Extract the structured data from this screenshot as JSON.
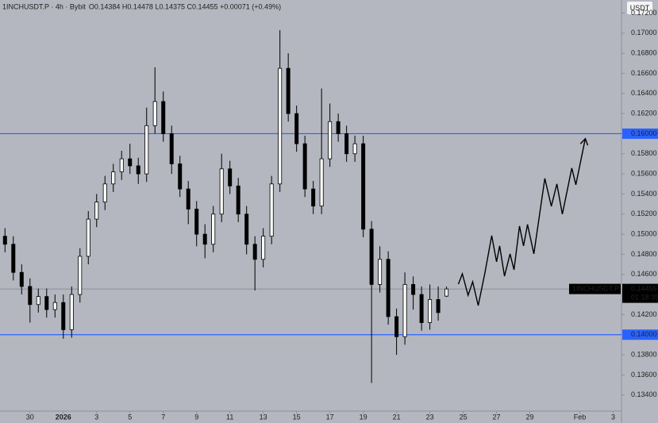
{
  "chart_data": {
    "type": "candlestick",
    "title": "1INCHUSDT.P · 4h · Bybit",
    "ohlc_label": "O0.14384 H0.14478 L0.14375 C0.14455 +0.00071 (+0.49%)",
    "currency_button": "USDT",
    "x": [
      -0.5,
      0,
      0.5,
      1,
      1.5,
      2,
      2.5,
      3,
      3.5,
      4,
      4.5,
      5,
      5.5,
      6,
      6.5,
      7,
      7.5,
      8,
      8.5,
      9,
      9.5,
      10,
      10.5,
      11,
      11.5,
      12,
      12.5,
      13,
      13.5,
      14,
      14.5,
      15,
      15.5,
      16,
      16.5,
      17,
      17.5,
      18,
      18.5,
      19,
      19.5,
      20,
      20.5,
      21,
      21.5,
      22,
      22.5,
      23,
      23.5,
      24,
      24.5,
      25,
      25.5,
      26
    ],
    "open": [
      0.1498,
      0.149,
      0.1462,
      0.1448,
      0.143,
      0.1438,
      0.1425,
      0.1432,
      0.1405,
      0.144,
      0.1478,
      0.1515,
      0.1532,
      0.155,
      0.1562,
      0.1575,
      0.1568,
      0.156,
      0.1608,
      0.1632,
      0.16,
      0.157,
      0.1545,
      0.1525,
      0.15,
      0.149,
      0.152,
      0.1565,
      0.1548,
      0.152,
      0.149,
      0.1475,
      0.1498,
      0.155,
      0.1665,
      0.162,
      0.159,
      0.1545,
      0.1528,
      0.1575,
      0.1612,
      0.16,
      0.158,
      0.159,
      0.1505,
      0.145,
      0.1475,
      0.1418,
      0.1398,
      0.145,
      0.144,
      0.1412,
      0.1435,
      0.14384
    ],
    "high": [
      0.1506,
      0.1498,
      0.147,
      0.1456,
      0.1446,
      0.1446,
      0.144,
      0.144,
      0.1448,
      0.1486,
      0.1523,
      0.154,
      0.1558,
      0.157,
      0.1583,
      0.159,
      0.1576,
      0.1626,
      0.1666,
      0.1642,
      0.1608,
      0.1578,
      0.1553,
      0.1533,
      0.151,
      0.1528,
      0.158,
      0.1573,
      0.1556,
      0.1528,
      0.1498,
      0.1506,
      0.1558,
      0.1703,
      0.168,
      0.1628,
      0.1598,
      0.1553,
      0.1645,
      0.163,
      0.162,
      0.1608,
      0.1598,
      0.1598,
      0.1513,
      0.1488,
      0.1483,
      0.1426,
      0.1462,
      0.1458,
      0.1448,
      0.145,
      0.1448,
      0.14478
    ],
    "low": [
      0.1482,
      0.1454,
      0.144,
      0.1412,
      0.1422,
      0.1417,
      0.1417,
      0.1396,
      0.1397,
      0.1432,
      0.147,
      0.1507,
      0.1524,
      0.1542,
      0.1554,
      0.156,
      0.155,
      0.1552,
      0.16,
      0.1592,
      0.156,
      0.1537,
      0.151,
      0.1488,
      0.1476,
      0.1482,
      0.1512,
      0.154,
      0.1512,
      0.148,
      0.1444,
      0.1467,
      0.149,
      0.1542,
      0.1612,
      0.1582,
      0.1537,
      0.152,
      0.152,
      0.1567,
      0.1592,
      0.1572,
      0.1572,
      0.1497,
      0.1352,
      0.1442,
      0.141,
      0.138,
      0.139,
      0.1425,
      0.1404,
      0.1405,
      0.1414,
      0.14375
    ],
    "close": [
      0.149,
      0.1462,
      0.1448,
      0.143,
      0.1438,
      0.1425,
      0.1432,
      0.1405,
      0.144,
      0.1478,
      0.1515,
      0.1532,
      0.155,
      0.1562,
      0.1575,
      0.1568,
      0.156,
      0.1608,
      0.1632,
      0.16,
      0.157,
      0.1545,
      0.1525,
      0.15,
      0.149,
      0.152,
      0.1565,
      0.1548,
      0.152,
      0.149,
      0.1475,
      0.1498,
      0.155,
      0.1665,
      0.162,
      0.159,
      0.1545,
      0.1528,
      0.1575,
      0.1612,
      0.16,
      0.158,
      0.159,
      0.1505,
      0.145,
      0.1475,
      0.1418,
      0.1398,
      0.145,
      0.144,
      0.1412,
      0.1435,
      0.1422,
      0.14455
    ],
    "up_color": "#ffffff",
    "down_color": "#000000",
    "xlim": [
      -0.8,
      36.5
    ],
    "xticks": [
      {
        "value": 1,
        "label": "30"
      },
      {
        "value": 3,
        "label": "2026"
      },
      {
        "value": 5,
        "label": "3"
      },
      {
        "value": 7,
        "label": "5"
      },
      {
        "value": 9,
        "label": "7"
      },
      {
        "value": 11,
        "label": "9"
      },
      {
        "value": 13,
        "label": "11"
      },
      {
        "value": 15,
        "label": "13"
      },
      {
        "value": 17,
        "label": "15"
      },
      {
        "value": 19,
        "label": "17"
      },
      {
        "value": 21,
        "label": "19"
      },
      {
        "value": 23,
        "label": "21"
      },
      {
        "value": 25,
        "label": "23"
      },
      {
        "value": 27,
        "label": "25"
      },
      {
        "value": 29,
        "label": "27"
      },
      {
        "value": 31,
        "label": "29"
      },
      {
        "value": 34,
        "label": "Feb"
      },
      {
        "value": 36,
        "label": "3"
      }
    ],
    "ylim": [
      0.1324,
      0.1733
    ],
    "yticks": [
      {
        "value": 0.134,
        "label": "0.13400"
      },
      {
        "value": 0.136,
        "label": "0.13600"
      },
      {
        "value": 0.138,
        "label": "0.13800"
      },
      {
        "value": 0.14,
        "label": "0.14000"
      },
      {
        "value": 0.142,
        "label": "0.14200"
      },
      {
        "value": 0.144,
        "label": "0.14400"
      },
      {
        "value": 0.146,
        "label": "0.14600"
      },
      {
        "value": 0.148,
        "label": "0.14800"
      },
      {
        "value": 0.15,
        "label": "0.15000"
      },
      {
        "value": 0.152,
        "label": "0.15200"
      },
      {
        "value": 0.154,
        "label": "0.15400"
      },
      {
        "value": 0.156,
        "label": "0.15600"
      },
      {
        "value": 0.158,
        "label": "0.15800"
      },
      {
        "value": 0.16,
        "label": "0.16000"
      },
      {
        "value": 0.162,
        "label": "0.16200"
      },
      {
        "value": 0.164,
        "label": "0.16400"
      },
      {
        "value": 0.166,
        "label": "0.16600"
      },
      {
        "value": 0.168,
        "label": "0.16800"
      },
      {
        "value": 0.17,
        "label": "0.17000"
      },
      {
        "value": 0.172,
        "label": "0.17200"
      }
    ],
    "levels": [
      {
        "value": 0.16,
        "label": "0.16000",
        "color": "#2962ff"
      },
      {
        "value": 0.14,
        "label": "0.14000",
        "color": "#2962ff"
      }
    ],
    "last_price": {
      "symbol": "1INCHUSDT.P",
      "value": 0.14455,
      "countdown": "01:18:35"
    },
    "projection": {
      "x": [
        26.71,
        26.95,
        27.29,
        27.57,
        27.9,
        28.29,
        28.71,
        29.0,
        29.19,
        29.48,
        29.81,
        30.05,
        30.38,
        30.62,
        30.86,
        31.24,
        31.9,
        32.29,
        32.62,
        32.95,
        33.52,
        33.76,
        34.33
      ],
      "y": [
        0.14503,
        0.14606,
        0.14392,
        0.14527,
        0.1429,
        0.14606,
        0.14986,
        0.14725,
        0.14883,
        0.14582,
        0.14804,
        0.14646,
        0.15081,
        0.14883,
        0.15097,
        0.14804,
        0.15555,
        0.15278,
        0.155,
        0.15199,
        0.15658,
        0.15492,
        0.15951
      ],
      "color": "#000000"
    }
  }
}
